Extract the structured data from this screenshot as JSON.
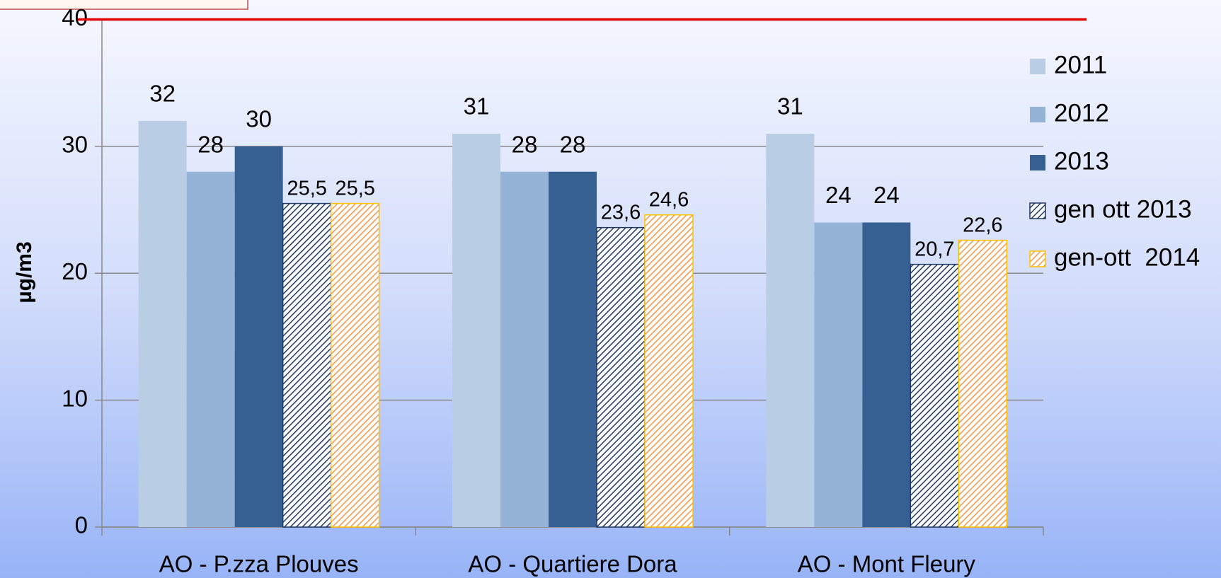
{
  "chart_data": {
    "type": "bar",
    "y_label": "µg/m3",
    "categories": [
      "AO - P.zza Plouves",
      "AO - Quartiere Dora",
      "AO - Mont Fleury"
    ],
    "series": [
      {
        "name": "2011",
        "color": "#b9cde5",
        "values": [
          32,
          31,
          31
        ]
      },
      {
        "name": "2012",
        "color": "#95b3d7",
        "values": [
          28,
          28,
          24
        ]
      },
      {
        "name": "2013",
        "color": "#366092",
        "values": [
          30,
          28,
          24
        ]
      },
      {
        "name": "gen ott 2013",
        "color": "#1f3864",
        "pattern": "hatch",
        "values": [
          25.5,
          23.6,
          20.7
        ],
        "value_labels": [
          "25,5",
          "23,6",
          "20,7"
        ]
      },
      {
        "name": "gen-ott  2014",
        "color": "#f79646",
        "border": "#ffc000",
        "pattern": "hatch",
        "values": [
          25.5,
          24.6,
          22.6
        ],
        "value_labels": [
          "25,5",
          "24,6",
          "22,6"
        ]
      }
    ],
    "ylim": [
      0,
      40
    ],
    "yticks": [
      0,
      10,
      20,
      30,
      40
    ],
    "grid": true,
    "threshold": {
      "value": 40,
      "color": "#e00000"
    },
    "legend": "right"
  }
}
